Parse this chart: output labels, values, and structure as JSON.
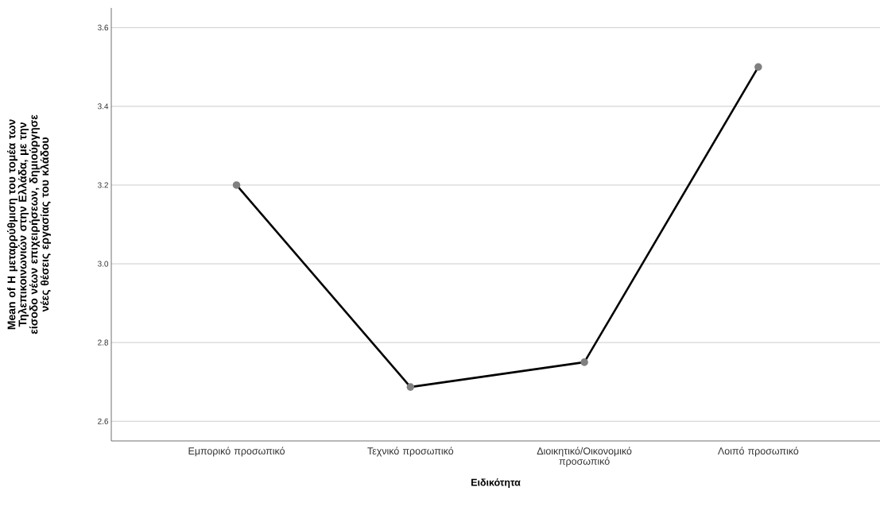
{
  "chart_data": {
    "type": "line",
    "xlabel": "Ειδικότητα",
    "ylabel": "Mean of Η μεταρρύθμιση του τομέα των Τηλεπικοινωνιών στην Ελλάδα, με την είσοδο νέων επιχειρήσεων,  δημιούργησε νέες θέσεις εργασίας του κλάδου",
    "categories": [
      "Εμπορικό προσωπικό",
      "Τεχνικό προσωπικό",
      "Διοικητικό/Οικονομικό προσωπικό",
      "Λοιπό προσωπικό"
    ],
    "values": [
      3.2,
      2.687,
      2.75,
      3.5
    ],
    "color": "#000000",
    "ylim": [
      2.55,
      3.65
    ],
    "yticks": [
      2.6,
      2.8,
      {
        "value": 3.0,
        "label": "3.0"
      },
      3.2,
      3.4,
      3.6
    ],
    "grid": "y",
    "marker": "circle",
    "line_style": "solid"
  }
}
